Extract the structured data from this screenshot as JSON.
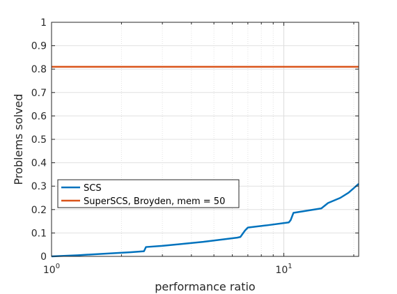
{
  "chart_data": {
    "type": "line",
    "xlabel": "performance ratio",
    "ylabel": "Problems solved",
    "xscale": "log",
    "xlim": [
      1,
      21
    ],
    "ylim": [
      0,
      1
    ],
    "grid": true,
    "legend_position": "lower-left",
    "x_ticks": [
      {
        "value": 1,
        "base": "10",
        "exp": "0"
      },
      {
        "value": 10,
        "base": "10",
        "exp": "1"
      }
    ],
    "y_ticks": [
      "0",
      "0.1",
      "0.2",
      "0.3",
      "0.4",
      "0.5",
      "0.6",
      "0.7",
      "0.8",
      "0.9",
      "1"
    ],
    "series": [
      {
        "name": "SCS",
        "color": "#0072BD",
        "x": [
          1.0,
          1.3,
          2.2,
          2.5,
          2.55,
          3.0,
          4.5,
          6.3,
          6.5,
          6.8,
          7.0,
          8.5,
          10.5,
          10.7,
          11.0,
          14.5,
          15.5,
          17.5,
          19.0,
          21.0
        ],
        "y": [
          0.0,
          0.005,
          0.018,
          0.022,
          0.04,
          0.045,
          0.062,
          0.08,
          0.083,
          0.11,
          0.123,
          0.133,
          0.145,
          0.155,
          0.186,
          0.205,
          0.228,
          0.25,
          0.272,
          0.31
        ]
      },
      {
        "name": "SuperSCS, Broyden, mem = 50",
        "color": "#D95319",
        "x": [
          1.0,
          21.0
        ],
        "y": [
          0.81,
          0.81
        ]
      }
    ]
  }
}
